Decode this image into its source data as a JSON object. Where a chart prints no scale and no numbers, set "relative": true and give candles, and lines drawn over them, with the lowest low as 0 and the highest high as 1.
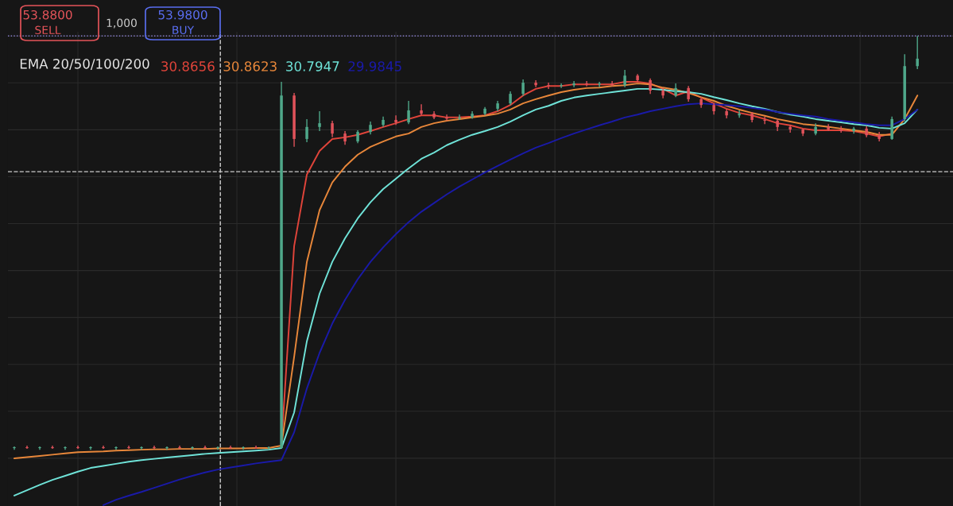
{
  "chart_data": {
    "type": "candlestick",
    "relative": true,
    "legend_title": "EMA 20/50/100/200",
    "legend": "top left",
    "grid": true,
    "annotations": [
      "53.8800",
      "SELL",
      "1,000",
      "53.9800",
      "BUY"
    ],
    "categories": [
      null,
      null,
      null,
      null,
      null,
      null,
      null,
      null,
      null,
      null,
      null,
      null,
      null,
      null,
      null,
      null,
      null,
      null,
      null,
      null,
      null,
      null,
      null,
      null,
      null,
      null,
      null,
      null,
      null,
      null,
      null,
      null,
      null,
      null,
      null,
      null,
      null,
      null,
      null,
      null,
      null,
      null,
      null,
      null,
      null,
      null,
      null,
      null,
      null,
      null,
      null,
      null,
      null,
      null,
      null,
      null,
      null,
      null,
      null,
      null,
      null,
      null,
      null,
      null,
      null,
      null,
      null,
      null,
      null,
      null,
      null,
      null
    ],
    "ohlc": [
      [
        0.004,
        0.008,
        0.0,
        0.006
      ],
      [
        0.006,
        0.01,
        0.002,
        0.004
      ],
      [
        0.004,
        0.008,
        0.0,
        0.006
      ],
      [
        0.006,
        0.01,
        0.002,
        0.004
      ],
      [
        0.004,
        0.008,
        0.0,
        0.006
      ],
      [
        0.006,
        0.01,
        0.002,
        0.004
      ],
      [
        0.004,
        0.008,
        0.0,
        0.006
      ],
      [
        0.006,
        0.01,
        0.002,
        0.004
      ],
      [
        0.004,
        0.008,
        0.0,
        0.006
      ],
      [
        0.006,
        0.01,
        0.002,
        0.004
      ],
      [
        0.004,
        0.008,
        0.0,
        0.006
      ],
      [
        0.006,
        0.01,
        0.002,
        0.004
      ],
      [
        0.004,
        0.008,
        0.0,
        0.006
      ],
      [
        0.006,
        0.01,
        0.002,
        0.004
      ],
      [
        0.004,
        0.008,
        0.0,
        0.006
      ],
      [
        0.006,
        0.01,
        0.002,
        0.004
      ],
      [
        0.004,
        0.008,
        0.0,
        0.006
      ],
      [
        0.006,
        0.01,
        0.002,
        0.004
      ],
      [
        0.004,
        0.008,
        0.0,
        0.006
      ],
      [
        0.006,
        0.01,
        0.002,
        0.004
      ],
      [
        0.004,
        0.008,
        0.0,
        0.006
      ],
      [
        0.004,
        0.889,
        0.002,
        0.856
      ],
      [
        0.856,
        0.862,
        0.732,
        0.751
      ],
      [
        0.751,
        0.799,
        0.743,
        0.78
      ],
      [
        0.78,
        0.818,
        0.77,
        0.789
      ],
      [
        0.789,
        0.795,
        0.755,
        0.764
      ],
      [
        0.764,
        0.77,
        0.737,
        0.745
      ],
      [
        0.745,
        0.772,
        0.741,
        0.768
      ],
      [
        0.768,
        0.793,
        0.762,
        0.785
      ],
      [
        0.785,
        0.805,
        0.78,
        0.797
      ],
      [
        0.797,
        0.808,
        0.785,
        0.791
      ],
      [
        0.791,
        0.843,
        0.787,
        0.82
      ],
      [
        0.82,
        0.835,
        0.808,
        0.812
      ],
      [
        0.812,
        0.818,
        0.799,
        0.803
      ],
      [
        0.803,
        0.81,
        0.795,
        0.8
      ],
      [
        0.8,
        0.81,
        0.797,
        0.803
      ],
      [
        0.803,
        0.818,
        0.8,
        0.812
      ],
      [
        0.812,
        0.828,
        0.808,
        0.824
      ],
      [
        0.824,
        0.843,
        0.818,
        0.837
      ],
      [
        0.837,
        0.866,
        0.833,
        0.86
      ],
      [
        0.86,
        0.895,
        0.855,
        0.887
      ],
      [
        0.887,
        0.893,
        0.876,
        0.881
      ],
      [
        0.881,
        0.887,
        0.872,
        0.879
      ],
      [
        0.879,
        0.885,
        0.874,
        0.881
      ],
      [
        0.881,
        0.891,
        0.876,
        0.885
      ],
      [
        0.885,
        0.891,
        0.878,
        0.883
      ],
      [
        0.883,
        0.889,
        0.876,
        0.885
      ],
      [
        0.885,
        0.891,
        0.878,
        0.881
      ],
      [
        0.881,
        0.918,
        0.876,
        0.904
      ],
      [
        0.904,
        0.908,
        0.889,
        0.893
      ],
      [
        0.893,
        0.897,
        0.86,
        0.868
      ],
      [
        0.868,
        0.874,
        0.849,
        0.856
      ],
      [
        0.856,
        0.885,
        0.852,
        0.874
      ],
      [
        0.874,
        0.879,
        0.841,
        0.847
      ],
      [
        0.847,
        0.853,
        0.826,
        0.833
      ],
      [
        0.833,
        0.837,
        0.81,
        0.818
      ],
      [
        0.818,
        0.824,
        0.801,
        0.808
      ],
      [
        0.808,
        0.82,
        0.802,
        0.812
      ],
      [
        0.812,
        0.816,
        0.791,
        0.797
      ],
      [
        0.797,
        0.805,
        0.787,
        0.795
      ],
      [
        0.795,
        0.799,
        0.77,
        0.78
      ],
      [
        0.78,
        0.785,
        0.766,
        0.774
      ],
      [
        0.774,
        0.776,
        0.758,
        0.764
      ],
      [
        0.764,
        0.789,
        0.76,
        0.78
      ],
      [
        0.78,
        0.787,
        0.77,
        0.774
      ],
      [
        0.774,
        0.782,
        0.766,
        0.77
      ],
      [
        0.77,
        0.78,
        0.764,
        0.776
      ],
      [
        0.776,
        0.782,
        0.755,
        0.76
      ],
      [
        0.76,
        0.768,
        0.745,
        0.751
      ],
      [
        0.751,
        0.805,
        0.749,
        0.799
      ],
      [
        0.799,
        0.956,
        0.793,
        0.927
      ],
      [
        0.927,
        1.0,
        0.92,
        0.945
      ]
    ],
    "series": [
      {
        "type": "line",
        "name": "30.8656",
        "color": "#e0443a",
        "values": [
          null,
          null,
          null,
          null,
          null,
          null,
          null,
          null,
          null,
          null,
          null,
          null,
          null,
          null,
          null,
          null,
          null,
          null,
          null,
          null,
          null,
          0.013,
          0.492,
          0.665,
          0.722,
          0.751,
          0.755,
          0.761,
          0.77,
          0.78,
          0.789,
          0.799,
          0.808,
          0.808,
          0.803,
          0.803,
          0.805,
          0.808,
          0.818,
          0.833,
          0.856,
          0.872,
          0.879,
          0.879,
          0.883,
          0.883,
          0.883,
          0.883,
          0.889,
          0.889,
          0.885,
          0.872,
          0.856,
          0.866,
          0.851,
          0.837,
          0.824,
          0.814,
          0.808,
          0.799,
          0.789,
          0.784,
          0.776,
          0.772,
          0.772,
          0.772,
          0.77,
          0.764,
          0.757,
          0.764,
          null,
          null
        ]
      },
      {
        "type": "line",
        "name": "30.8623",
        "color": "#e8873a",
        "values": [
          -0.021,
          -0.018,
          -0.015,
          -0.012,
          -0.009,
          -0.006,
          -0.005,
          -0.004,
          -0.002,
          -0.001,
          0.0,
          0.001,
          0.001,
          0.002,
          0.002,
          0.002,
          0.003,
          0.003,
          0.003,
          0.004,
          0.004,
          0.01,
          0.224,
          0.454,
          0.579,
          0.646,
          0.684,
          0.713,
          0.732,
          0.745,
          0.757,
          0.764,
          0.78,
          0.789,
          0.795,
          0.799,
          0.803,
          0.807,
          0.812,
          0.822,
          0.837,
          0.847,
          0.856,
          0.864,
          0.87,
          0.874,
          0.875,
          0.879,
          0.881,
          0.885,
          0.883,
          0.875,
          0.87,
          0.862,
          0.852,
          0.843,
          0.831,
          0.822,
          0.814,
          0.807,
          0.799,
          0.793,
          0.787,
          0.784,
          0.78,
          0.776,
          0.772,
          0.768,
          0.761,
          0.761,
          0.799,
          0.856
        ]
      },
      {
        "type": "line",
        "name": "30.7947",
        "color": "#6fe3d8",
        "values": [
          -0.111,
          -0.098,
          -0.085,
          -0.073,
          -0.063,
          -0.053,
          -0.044,
          -0.039,
          -0.034,
          -0.029,
          -0.025,
          -0.022,
          -0.019,
          -0.016,
          -0.013,
          -0.01,
          -0.008,
          -0.006,
          -0.004,
          -0.002,
          0.0,
          0.004,
          0.09,
          0.262,
          0.377,
          0.454,
          0.511,
          0.559,
          0.598,
          0.63,
          0.655,
          0.68,
          0.703,
          0.718,
          0.736,
          0.749,
          0.761,
          0.77,
          0.78,
          0.793,
          0.808,
          0.822,
          0.831,
          0.843,
          0.851,
          0.856,
          0.86,
          0.864,
          0.868,
          0.872,
          0.872,
          0.87,
          0.866,
          0.864,
          0.86,
          0.852,
          0.845,
          0.837,
          0.83,
          0.824,
          0.816,
          0.81,
          0.805,
          0.799,
          0.795,
          0.791,
          0.787,
          0.784,
          0.778,
          0.776,
          0.789,
          0.822
        ]
      },
      {
        "type": "line",
        "name": "29.9845",
        "color": "#1a1aa8",
        "values": [
          null,
          null,
          null,
          null,
          null,
          null,
          null,
          -0.134,
          -0.121,
          -0.111,
          -0.102,
          -0.092,
          -0.082,
          -0.072,
          -0.063,
          -0.055,
          -0.048,
          -0.043,
          -0.038,
          -0.033,
          -0.029,
          -0.025,
          0.042,
          0.148,
          0.234,
          0.305,
          0.362,
          0.412,
          0.454,
          0.489,
          0.521,
          0.55,
          0.575,
          0.596,
          0.617,
          0.636,
          0.653,
          0.67,
          0.686,
          0.701,
          0.716,
          0.73,
          0.741,
          0.753,
          0.764,
          0.774,
          0.784,
          0.793,
          0.803,
          0.81,
          0.818,
          0.824,
          0.83,
          0.835,
          0.837,
          0.835,
          0.833,
          0.83,
          0.826,
          0.822,
          0.816,
          0.812,
          0.808,
          0.805,
          0.799,
          0.795,
          0.791,
          0.787,
          0.784,
          0.784,
          0.799,
          0.822
        ]
      }
    ],
    "ref_lines": [
      {
        "axis": "y",
        "value": 0.672,
        "color": "#cccccc",
        "line_style": "dashed"
      },
      {
        "axis": "y",
        "value": 1.0,
        "color": "#8a7fd0",
        "line_style": "dotted"
      }
    ]
  }
}
